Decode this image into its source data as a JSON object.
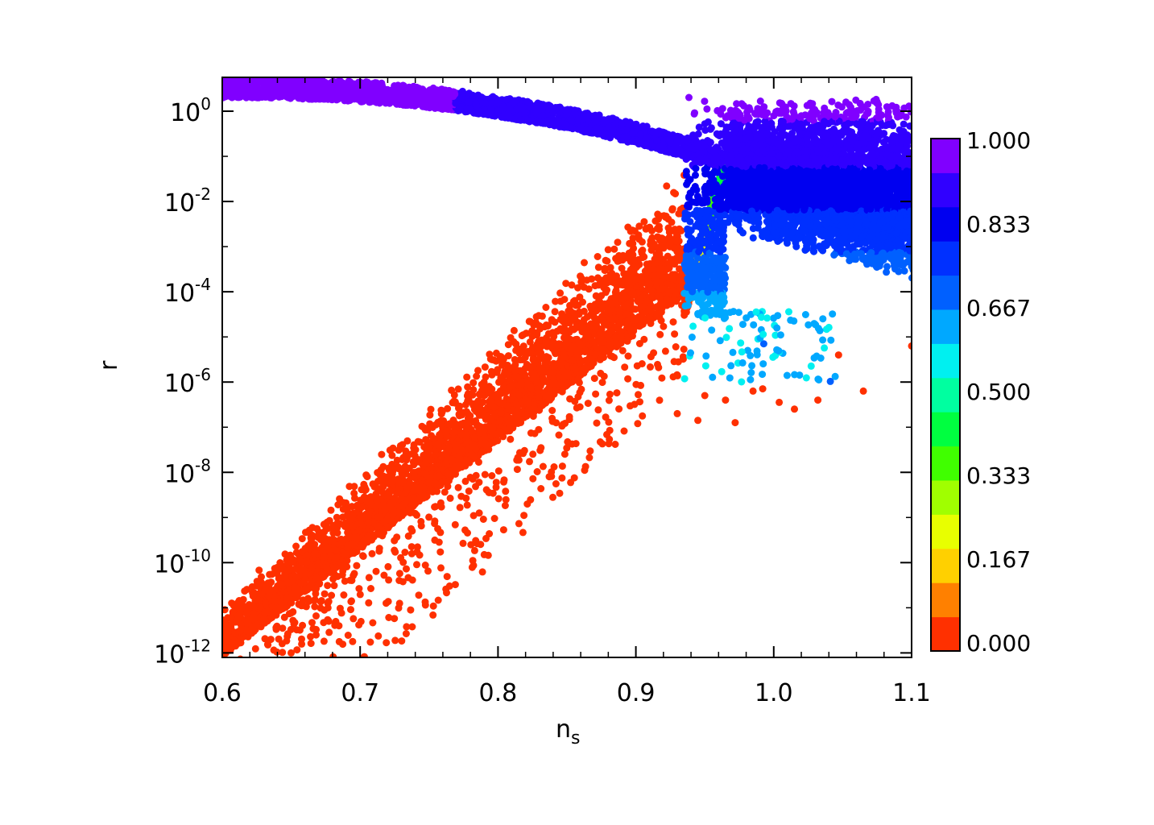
{
  "chart_data": {
    "type": "scatter",
    "xlabel": "n",
    "xlabel_sub": "s",
    "ylabel": "r",
    "xlim": [
      0.6,
      1.1
    ],
    "ylim_log10": [
      -12.1,
      0.75
    ],
    "y_scale": "log",
    "x_ticks": [
      "0.6",
      "0.7",
      "0.8",
      "0.9",
      "1.0",
      "1.1"
    ],
    "y_ticks": [
      {
        "base": "10",
        "exp": "0"
      },
      {
        "base": "10",
        "exp": "-2"
      },
      {
        "base": "10",
        "exp": "-4"
      },
      {
        "base": "10",
        "exp": "-6"
      },
      {
        "base": "10",
        "exp": "-8"
      },
      {
        "base": "10",
        "exp": "-10"
      },
      {
        "base": "10",
        "exp": "-12"
      }
    ],
    "colorbar": {
      "range": [
        0,
        1
      ],
      "labels": [
        "1.000",
        "0.833",
        "0.667",
        "0.500",
        "0.333",
        "0.167",
        "0.000"
      ],
      "colors": [
        "#ff3000",
        "#ff8000",
        "#ffd000",
        "#e8ff00",
        "#a0ff00",
        "#40ff00",
        "#00ff40",
        "#00ffa0",
        "#00f0f0",
        "#00a8ff",
        "#0060ff",
        "#0030ff",
        "#0000f0",
        "#3000ff",
        "#8000ff"
      ]
    },
    "series_description_points": {
      "upper_branch": [
        [
          0.6,
          0.3
        ],
        [
          0.7,
          0.18
        ],
        [
          0.8,
          0.0
        ],
        [
          0.9,
          -0.45
        ],
        [
          0.962,
          -1.1
        ]
      ],
      "lower_branch_edge": [
        [
          0.6,
          -11.3
        ],
        [
          0.7,
          -8.4
        ],
        [
          0.8,
          -5.5
        ],
        [
          0.9,
          -2.6
        ],
        [
          0.965,
          -1.3
        ]
      ],
      "outliers": [
        {
          "x": 1.1,
          "logy": -5.2,
          "value": 0.0
        },
        {
          "x": 1.065,
          "logy": -6.2,
          "value": 0.0
        },
        {
          "x": 1.015,
          "logy": -6.6,
          "value": 0.0
        },
        {
          "x": 0.972,
          "logy": -6.9,
          "value": 0.0
        },
        {
          "x": 1.047,
          "logy": -5.4,
          "value": 0.0
        },
        {
          "x": 0.93,
          "logy": -6.7,
          "value": 0.0
        }
      ]
    }
  }
}
